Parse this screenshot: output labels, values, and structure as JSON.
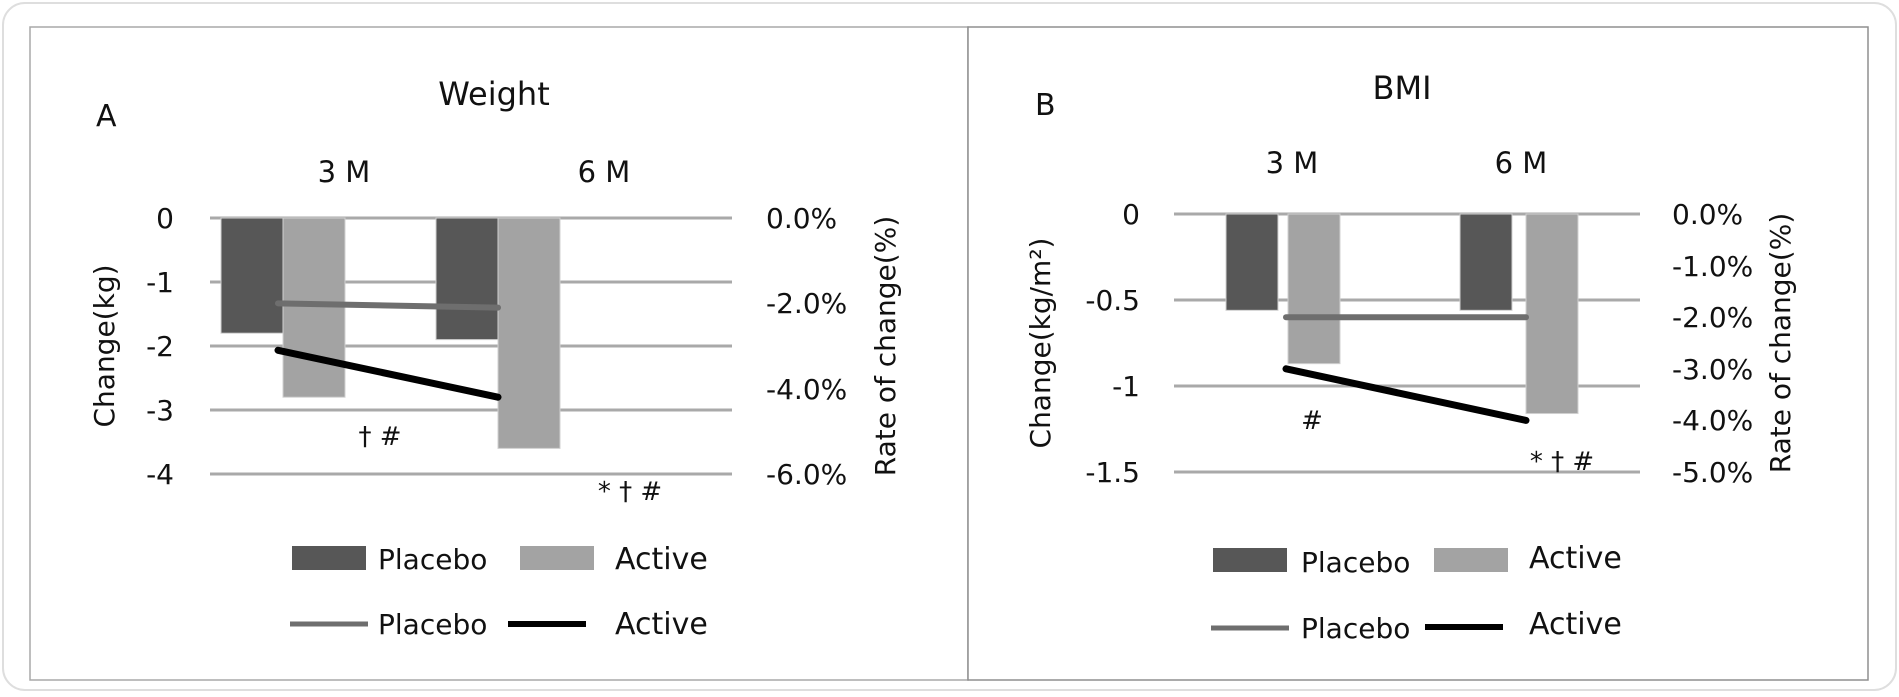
{
  "chart_data": [
    {
      "type": "bar",
      "panel_label": "A",
      "title": "Weight",
      "categories": [
        "3 M",
        "6 M"
      ],
      "ylabel": "Change(kg)",
      "y2label": "Rate of change(%)",
      "ylim": [
        -4,
        0
      ],
      "y_ticks": [
        "0",
        "-1",
        "-2",
        "-3",
        "-4"
      ],
      "y_tick_values": [
        0,
        -1,
        -2,
        -3,
        -4
      ],
      "y2lim": [
        -6.0,
        0.0
      ],
      "y2_ticks": [
        "0.0%",
        "-2.0%",
        "-4.0%",
        "-6.0%"
      ],
      "y2_tick_values": [
        0,
        -2,
        -4,
        -6
      ],
      "series": [
        {
          "name": "Placebo",
          "kind": "bar",
          "axis": "left",
          "values": [
            -1.8,
            -1.9
          ],
          "color": "#575757"
        },
        {
          "name": "Active",
          "kind": "bar",
          "axis": "left",
          "values": [
            -2.8,
            -3.6
          ],
          "color": "#a3a3a3"
        },
        {
          "name": "Placebo",
          "kind": "line",
          "axis": "right",
          "values": [
            -2.0,
            -2.1
          ],
          "color": "#6e6e6e"
        },
        {
          "name": "Active",
          "kind": "line",
          "axis": "right",
          "values": [
            -3.1,
            -4.2
          ],
          "color": "#000000"
        }
      ],
      "annotations": [
        "† #",
        "* † #"
      ],
      "grid": true,
      "legend": "bottom"
    },
    {
      "type": "bar",
      "panel_label": "B",
      "title": "BMI",
      "categories": [
        "3 M",
        "6 M"
      ],
      "ylabel": "Change(kg/m²)",
      "y2label": "Rate of change(%)",
      "ylim": [
        -1.5,
        0
      ],
      "y_ticks": [
        "0",
        "-0.5",
        "-1",
        "-1.5"
      ],
      "y_tick_values": [
        0,
        -0.5,
        -1,
        -1.5
      ],
      "y2lim": [
        -5.0,
        0.0
      ],
      "y2_ticks": [
        "0.0%",
        "-1.0%",
        "-2.0%",
        "-3.0%",
        "-4.0%",
        "-5.0%"
      ],
      "y2_tick_values": [
        0,
        -1,
        -2,
        -3,
        -4,
        -5
      ],
      "series": [
        {
          "name": "Placebo",
          "kind": "bar",
          "axis": "left",
          "values": [
            -0.56,
            -0.56
          ],
          "color": "#575757"
        },
        {
          "name": "Active",
          "kind": "bar",
          "axis": "left",
          "values": [
            -0.87,
            -1.16
          ],
          "color": "#a3a3a3"
        },
        {
          "name": "Placebo",
          "kind": "line",
          "axis": "right",
          "values": [
            -2.0,
            -2.0
          ],
          "color": "#6e6e6e"
        },
        {
          "name": "Active",
          "kind": "line",
          "axis": "right",
          "values": [
            -3.0,
            -4.0
          ],
          "color": "#000000"
        }
      ],
      "annotations": [
        "#",
        "* † #"
      ],
      "grid": true,
      "legend": "bottom"
    }
  ]
}
